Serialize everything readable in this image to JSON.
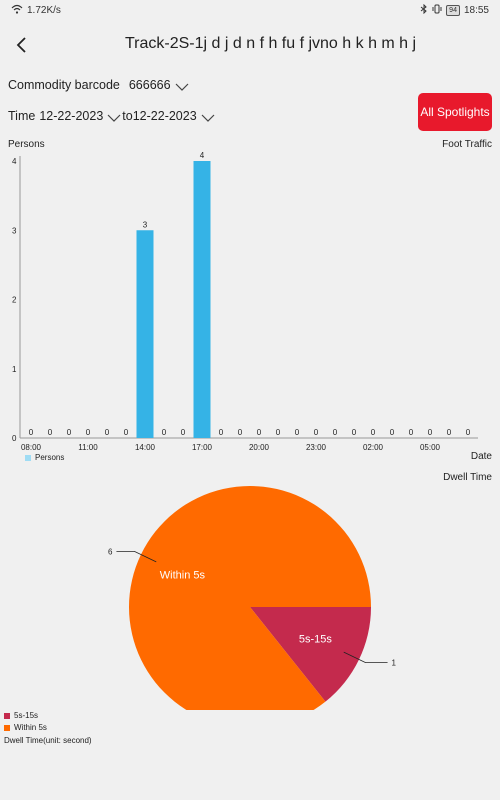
{
  "status_bar": {
    "network_speed": "1.72K/s",
    "battery": "94",
    "time": "18:55"
  },
  "header": {
    "title": "Track-2S-1j d j d n f h fu f jvno h k h m h j"
  },
  "filters": {
    "barcode_label": "Commodity barcode",
    "barcode_value": "666666",
    "time_label": "Time",
    "start_date": "12-22-2023",
    "to_label": "to",
    "end_date": "12-22-2023"
  },
  "all_spotlights_button": "All Spotlights",
  "foot_traffic": {
    "y_axis_title": "Persons",
    "chart_title": "Foot Traffic",
    "x_axis_title": "Date",
    "legend": "Persons"
  },
  "dwell_time": {
    "chart_title": "Dwell Time",
    "legend_5_15": "5s-15s",
    "legend_within_5": "Within 5s",
    "unit_note": "Dwell Time(unit: second)"
  },
  "colors": {
    "bar": "#35b3e6",
    "within5": "#ff6a00",
    "s5_15": "#c42a4d",
    "button": "#e8192c"
  },
  "chart_data": [
    {
      "type": "bar",
      "xlabel": "Date",
      "ylabel": "Persons",
      "ylim": [
        0,
        4
      ],
      "yticks": [
        0,
        1,
        2,
        3,
        4
      ],
      "xticks": [
        "08:00",
        "11:00",
        "14:00",
        "17:00",
        "20:00",
        "23:00",
        "02:00",
        "05:00"
      ],
      "categories": [
        "08:00",
        "09:00",
        "10:00",
        "11:00",
        "12:00",
        "13:00",
        "14:00",
        "15:00",
        "16:00",
        "17:00",
        "18:00",
        "19:00",
        "20:00",
        "21:00",
        "22:00",
        "23:00",
        "00:00",
        "01:00",
        "02:00",
        "03:00",
        "04:00",
        "05:00",
        "06:00",
        "07:00"
      ],
      "series": [
        {
          "name": "Persons",
          "values": [
            0,
            0,
            0,
            0,
            0,
            0,
            3,
            0,
            0,
            4,
            0,
            0,
            0,
            0,
            0,
            0,
            0,
            0,
            0,
            0,
            0,
            0,
            0,
            0
          ]
        }
      ],
      "legend": "bottom-left"
    },
    {
      "type": "pie",
      "slices": [
        {
          "label": "5s-15s",
          "value": 1,
          "color": "#c42a4d"
        },
        {
          "label": "Within 5s",
          "value": 6,
          "color": "#ff6a00"
        }
      ],
      "legend": "bottom-left"
    }
  ]
}
